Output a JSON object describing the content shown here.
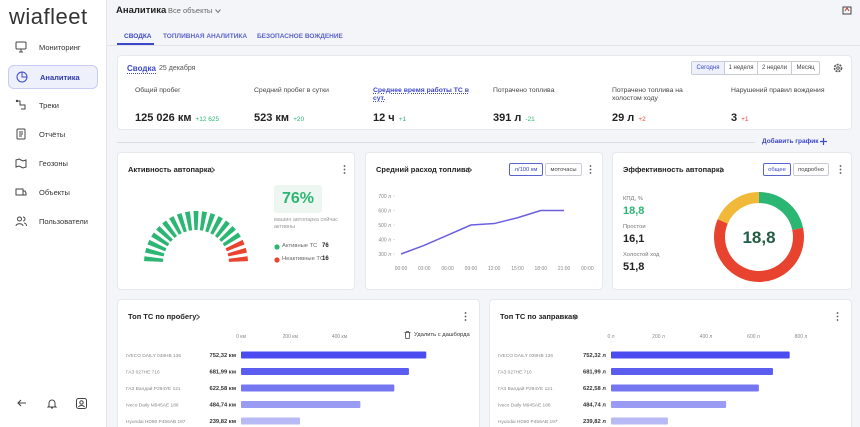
{
  "brand": "wiafleet",
  "nav": {
    "items": [
      "Мониторинг",
      "Аналитика",
      "Треки",
      "Отчёты",
      "Геозоны",
      "Объекты",
      "Пользователи"
    ],
    "active": 1
  },
  "header": {
    "title": "Аналитика",
    "filter": "Все объекты"
  },
  "tabs": [
    "СВОДКА",
    "ТОПЛИВНАЯ АНАЛИТИКА",
    "БЕЗОПАСНОЕ ВОЖДЕНИЕ"
  ],
  "summary": {
    "title": "Сводка",
    "date": "25 декабря",
    "periods": [
      "Сегодня",
      "1 неделя",
      "2 недели",
      "Месяц"
    ],
    "kpis": [
      {
        "label": "Общий пробег",
        "value": "125 026 км",
        "delta": "+12 625",
        "delta_color": "#2bb673"
      },
      {
        "label": "Средний пробег в сутки",
        "value": "523 км",
        "delta": "+20",
        "delta_color": "#2bb673"
      },
      {
        "label": "Среднее время работы ТС в сут.",
        "value": "12 ч",
        "delta": "+1",
        "delta_color": "#2bb673"
      },
      {
        "label": "Потрачено топлива",
        "value": "391 л",
        "delta": "-21",
        "delta_color": "#2bb673"
      },
      {
        "label": "Потрачено топлива на холостом ходу",
        "value": "29 л",
        "delta": "+2",
        "delta_color": "#e8432e"
      },
      {
        "label": "Нарушений правил вождения",
        "value": "3",
        "delta": "+1",
        "delta_color": "#e8432e"
      }
    ]
  },
  "add_chart": "Добавить график",
  "activity": {
    "title": "Активность автопарка",
    "percent": "76%",
    "caption": "машин автопарка сейчас активны",
    "legend": [
      {
        "name": "Активные ТС",
        "value": 76,
        "color": "#2bb673"
      },
      {
        "name": "Неактивные ТС",
        "value": 16,
        "color": "#e8432e"
      }
    ]
  },
  "fuel": {
    "title": "Средний расход топлива",
    "toggles": [
      "л/100 км",
      "моточасы"
    ],
    "chart": {
      "type": "line",
      "x": [
        "00:00",
        "03:00",
        "06:00",
        "09:00",
        "12:00",
        "15:00",
        "18:00",
        "21:00",
        "00:00"
      ],
      "values": [
        300,
        360,
        430,
        500,
        510,
        550,
        600,
        600,
        null
      ],
      "color": "#6b5fe0",
      "ylim": [
        300,
        700
      ],
      "yticks": [
        {
          "value": 700,
          "label": "700 л"
        },
        {
          "value": 600,
          "label": "600 л"
        },
        {
          "value": 500,
          "label": "500 л"
        },
        {
          "value": 400,
          "label": "400 л"
        },
        {
          "value": 300,
          "label": "300 л"
        }
      ],
      "grid": false
    }
  },
  "efficiency": {
    "title": "Эффективность автопарка",
    "toggles": [
      "общее",
      "подробно"
    ],
    "center": "18,8",
    "metrics": [
      {
        "label": "КПД, %",
        "value": 18.8,
        "value_label": "18,8",
        "color": "#2bb673"
      },
      {
        "label": "Простои",
        "value": 16.1,
        "value_label": "16,1",
        "color": "#f0b93a"
      },
      {
        "label": "Холостой ход",
        "value": 51.8,
        "value_label": "51,8",
        "color": "#e8432e"
      }
    ]
  },
  "top_mileage": {
    "title": "Топ ТС по пробегу",
    "action": "Удалить с дашборда",
    "chart": {
      "type": "bar",
      "categories": [
        "IVECO DAILY 038HB 136",
        "ГАЗ 027HE 716",
        "ГАЗ Валдай Р294УЕ 121",
        "Iveco Daily M945AE 186",
        "Hyundai HD80 P456AB 197"
      ],
      "values": [
        752.32,
        681.99,
        622.58,
        484.74,
        239.82
      ],
      "value_labels": [
        "752,32 км",
        "681,99 км",
        "622,58 км",
        "484,74 км",
        "239,82 км"
      ],
      "colors": [
        "#4b4cf0",
        "#5b5df0",
        "#7577f1",
        "#9a9cf3",
        "#b8baf6"
      ],
      "xlim": [
        0,
        800
      ],
      "xticks": [
        {
          "value": 0,
          "label": "0 км"
        },
        {
          "value": 200,
          "label": "200 км"
        },
        {
          "value": 400,
          "label": "400 км"
        }
      ]
    }
  },
  "top_fuel": {
    "title": "Топ ТС по заправкам",
    "chart": {
      "type": "bar",
      "categories": [
        "IVECO DAILY 038HB 136",
        "ГАЗ 027HE 716",
        "ГАЗ Валдай Р294УЕ 121",
        "Iveco Daily M945AE 186",
        "Hyundai HD80 P456AB 197"
      ],
      "values": [
        752.32,
        681.99,
        622.58,
        484.74,
        239.82
      ],
      "value_labels": [
        "752,32 л",
        "681,99 л",
        "622,58 л",
        "484,74 л",
        "239,82 л"
      ],
      "colors": [
        "#4b4cf0",
        "#5b5df0",
        "#7577f1",
        "#9a9cf3",
        "#b8baf6"
      ],
      "xlim": [
        0,
        800
      ],
      "xticks": [
        {
          "value": 0,
          "label": "0 л"
        },
        {
          "value": 200,
          "label": "200 л"
        },
        {
          "value": 400,
          "label": "400 л"
        },
        {
          "value": 600,
          "label": "600 л"
        },
        {
          "value": 800,
          "label": "800 л"
        }
      ]
    }
  }
}
